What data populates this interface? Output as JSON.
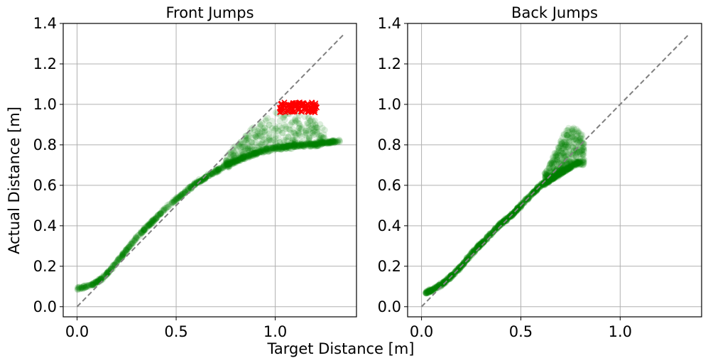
{
  "figure": {
    "xlabel": "Target Distance [m]",
    "ylabel": "Actual Distance [m]"
  },
  "colors": {
    "scatter": "#008000",
    "outlier": "#ff0000",
    "reference": "#808080",
    "grid": "#b0b0b0"
  },
  "chart_data": [
    {
      "type": "scatter",
      "title": "Front Jumps",
      "xlim": [
        -0.07,
        1.41
      ],
      "ylim": [
        -0.05,
        1.4
      ],
      "xticks": [
        0.0,
        0.5,
        1.0
      ],
      "xtick_labels": [
        "0.0",
        "0.5",
        "1.0"
      ],
      "yticks": [
        0.0,
        0.2,
        0.4,
        0.6,
        0.8,
        1.0,
        1.2,
        1.4
      ],
      "ytick_labels": [
        "0.0",
        "0.2",
        "0.4",
        "0.6",
        "0.8",
        "1.0",
        "1.2",
        "1.4"
      ],
      "grid": true,
      "reference_line": {
        "x": [
          0.0,
          1.35
        ],
        "y": [
          0.0,
          1.35
        ],
        "style": "dashed"
      },
      "series": [
        {
          "marker": "circle",
          "alpha": 0.15,
          "trend": {
            "x": [
              0.0,
              0.05,
              0.1,
              0.15,
              0.2,
              0.25,
              0.3,
              0.35,
              0.4,
              0.45,
              0.5,
              0.55,
              0.6,
              0.65,
              0.7,
              0.75,
              0.8,
              0.85,
              0.9,
              0.95,
              1.0,
              1.05,
              1.1,
              1.15,
              1.2,
              1.25,
              1.3,
              1.33
            ],
            "y": [
              0.09,
              0.1,
              0.12,
              0.16,
              0.22,
              0.28,
              0.34,
              0.39,
              0.44,
              0.49,
              0.53,
              0.57,
              0.61,
              0.64,
              0.67,
              0.7,
              0.72,
              0.74,
              0.76,
              0.775,
              0.785,
              0.79,
              0.795,
              0.8,
              0.805,
              0.81,
              0.815,
              0.82
            ]
          },
          "spread": {
            "x": [
              0.75,
              0.8,
              0.85,
              0.9,
              0.95,
              1.0,
              1.05,
              1.1,
              1.15,
              1.2,
              1.25
            ],
            "y_low": [
              0.68,
              0.71,
              0.73,
              0.75,
              0.76,
              0.77,
              0.78,
              0.78,
              0.79,
              0.79,
              0.8
            ],
            "y_high": [
              0.75,
              0.8,
              0.85,
              0.9,
              0.93,
              0.96,
              0.97,
              0.96,
              0.95,
              0.93,
              0.88
            ]
          }
        },
        {
          "marker": "x",
          "x_range": [
            1.02,
            1.21
          ],
          "y_range": [
            0.96,
            1.01
          ]
        }
      ]
    },
    {
      "type": "scatter",
      "title": "Back Jumps",
      "xlim": [
        -0.07,
        1.41
      ],
      "ylim": [
        -0.05,
        1.4
      ],
      "xticks": [
        0.0,
        0.5,
        1.0
      ],
      "xtick_labels": [
        "0.0",
        "0.5",
        "1.0"
      ],
      "yticks": [
        0.0,
        0.2,
        0.4,
        0.6,
        0.8,
        1.0,
        1.2,
        1.4
      ],
      "ytick_labels": [
        "0.0",
        "0.2",
        "0.4",
        "0.6",
        "0.8",
        "1.0",
        "1.2",
        "1.4"
      ],
      "grid": true,
      "reference_line": {
        "x": [
          0.0,
          1.35
        ],
        "y": [
          0.0,
          1.35
        ],
        "style": "dashed"
      },
      "series": [
        {
          "marker": "circle",
          "alpha": 0.15,
          "trend": {
            "x": [
              0.02,
              0.05,
              0.1,
              0.15,
              0.2,
              0.25,
              0.3,
              0.35,
              0.4,
              0.45,
              0.5,
              0.55,
              0.6,
              0.65,
              0.7,
              0.75,
              0.8
            ],
            "y": [
              0.07,
              0.08,
              0.11,
              0.15,
              0.2,
              0.26,
              0.31,
              0.36,
              0.41,
              0.45,
              0.5,
              0.55,
              0.6,
              0.63,
              0.66,
              0.69,
              0.72
            ]
          },
          "spread": {
            "x": [
              0.62,
              0.66,
              0.7,
              0.74,
              0.78,
              0.82
            ],
            "y_low": [
              0.6,
              0.63,
              0.66,
              0.69,
              0.7,
              0.7
            ],
            "y_high": [
              0.66,
              0.74,
              0.82,
              0.9,
              0.88,
              0.84
            ]
          }
        }
      ]
    }
  ]
}
